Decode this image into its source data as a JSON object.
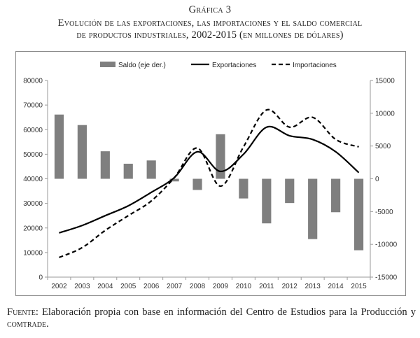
{
  "figure": {
    "label": "Gráfica 3",
    "title_line1": "Evolución de las exportaciones, las importaciones y el saldo comercial",
    "title_line2": "de productos industriales, 2002-2015 (en millones de dólares)"
  },
  "source": {
    "prefix": "Fuente:",
    "text": "Elaboración propia con base en información del Centro de Estudios para la Producción y",
    "suffix": "comtrade."
  },
  "chart_data": {
    "type": "bar+line",
    "categories": [
      "2002",
      "2003",
      "2004",
      "2005",
      "2006",
      "2007",
      "2008",
      "2009",
      "2010",
      "2011",
      "2012",
      "2013",
      "2014",
      "2015"
    ],
    "left_axis": {
      "min": 0,
      "max": 80000,
      "ticks": [
        "0",
        "10000",
        "20000",
        "30000",
        "40000",
        "50000",
        "60000",
        "70000",
        "80000"
      ]
    },
    "right_axis": {
      "min": -15000,
      "max": 15000,
      "ticks": [
        "-15000",
        "-10000",
        "-5000",
        "0",
        "5000",
        "10000",
        "15000"
      ]
    },
    "legend": {
      "placement": "top",
      "items": [
        "Saldo (eje der.)",
        "Exportaciones",
        "Importaciones"
      ]
    },
    "colors": {
      "bars": "#7f7f7f",
      "lines": "#000000"
    },
    "series": [
      {
        "name": "Saldo (eje der.)",
        "kind": "bar",
        "axis": "right",
        "values": [
          9800,
          8200,
          4200,
          2300,
          2800,
          -400,
          -1700,
          6800,
          -3000,
          -6800,
          -3700,
          -9200,
          -5100,
          -10900
        ]
      },
      {
        "name": "Exportaciones",
        "kind": "line",
        "style": "solid",
        "axis": "left",
        "values": [
          18000,
          21000,
          25000,
          29000,
          34500,
          40500,
          51000,
          43000,
          50000,
          61000,
          57500,
          56000,
          51000,
          42500
        ]
      },
      {
        "name": "Importaciones",
        "kind": "line",
        "style": "dashed",
        "axis": "left",
        "values": [
          8000,
          12000,
          19000,
          25000,
          31000,
          40500,
          52500,
          37000,
          53000,
          68000,
          61000,
          65000,
          56000,
          53000
        ]
      }
    ]
  }
}
